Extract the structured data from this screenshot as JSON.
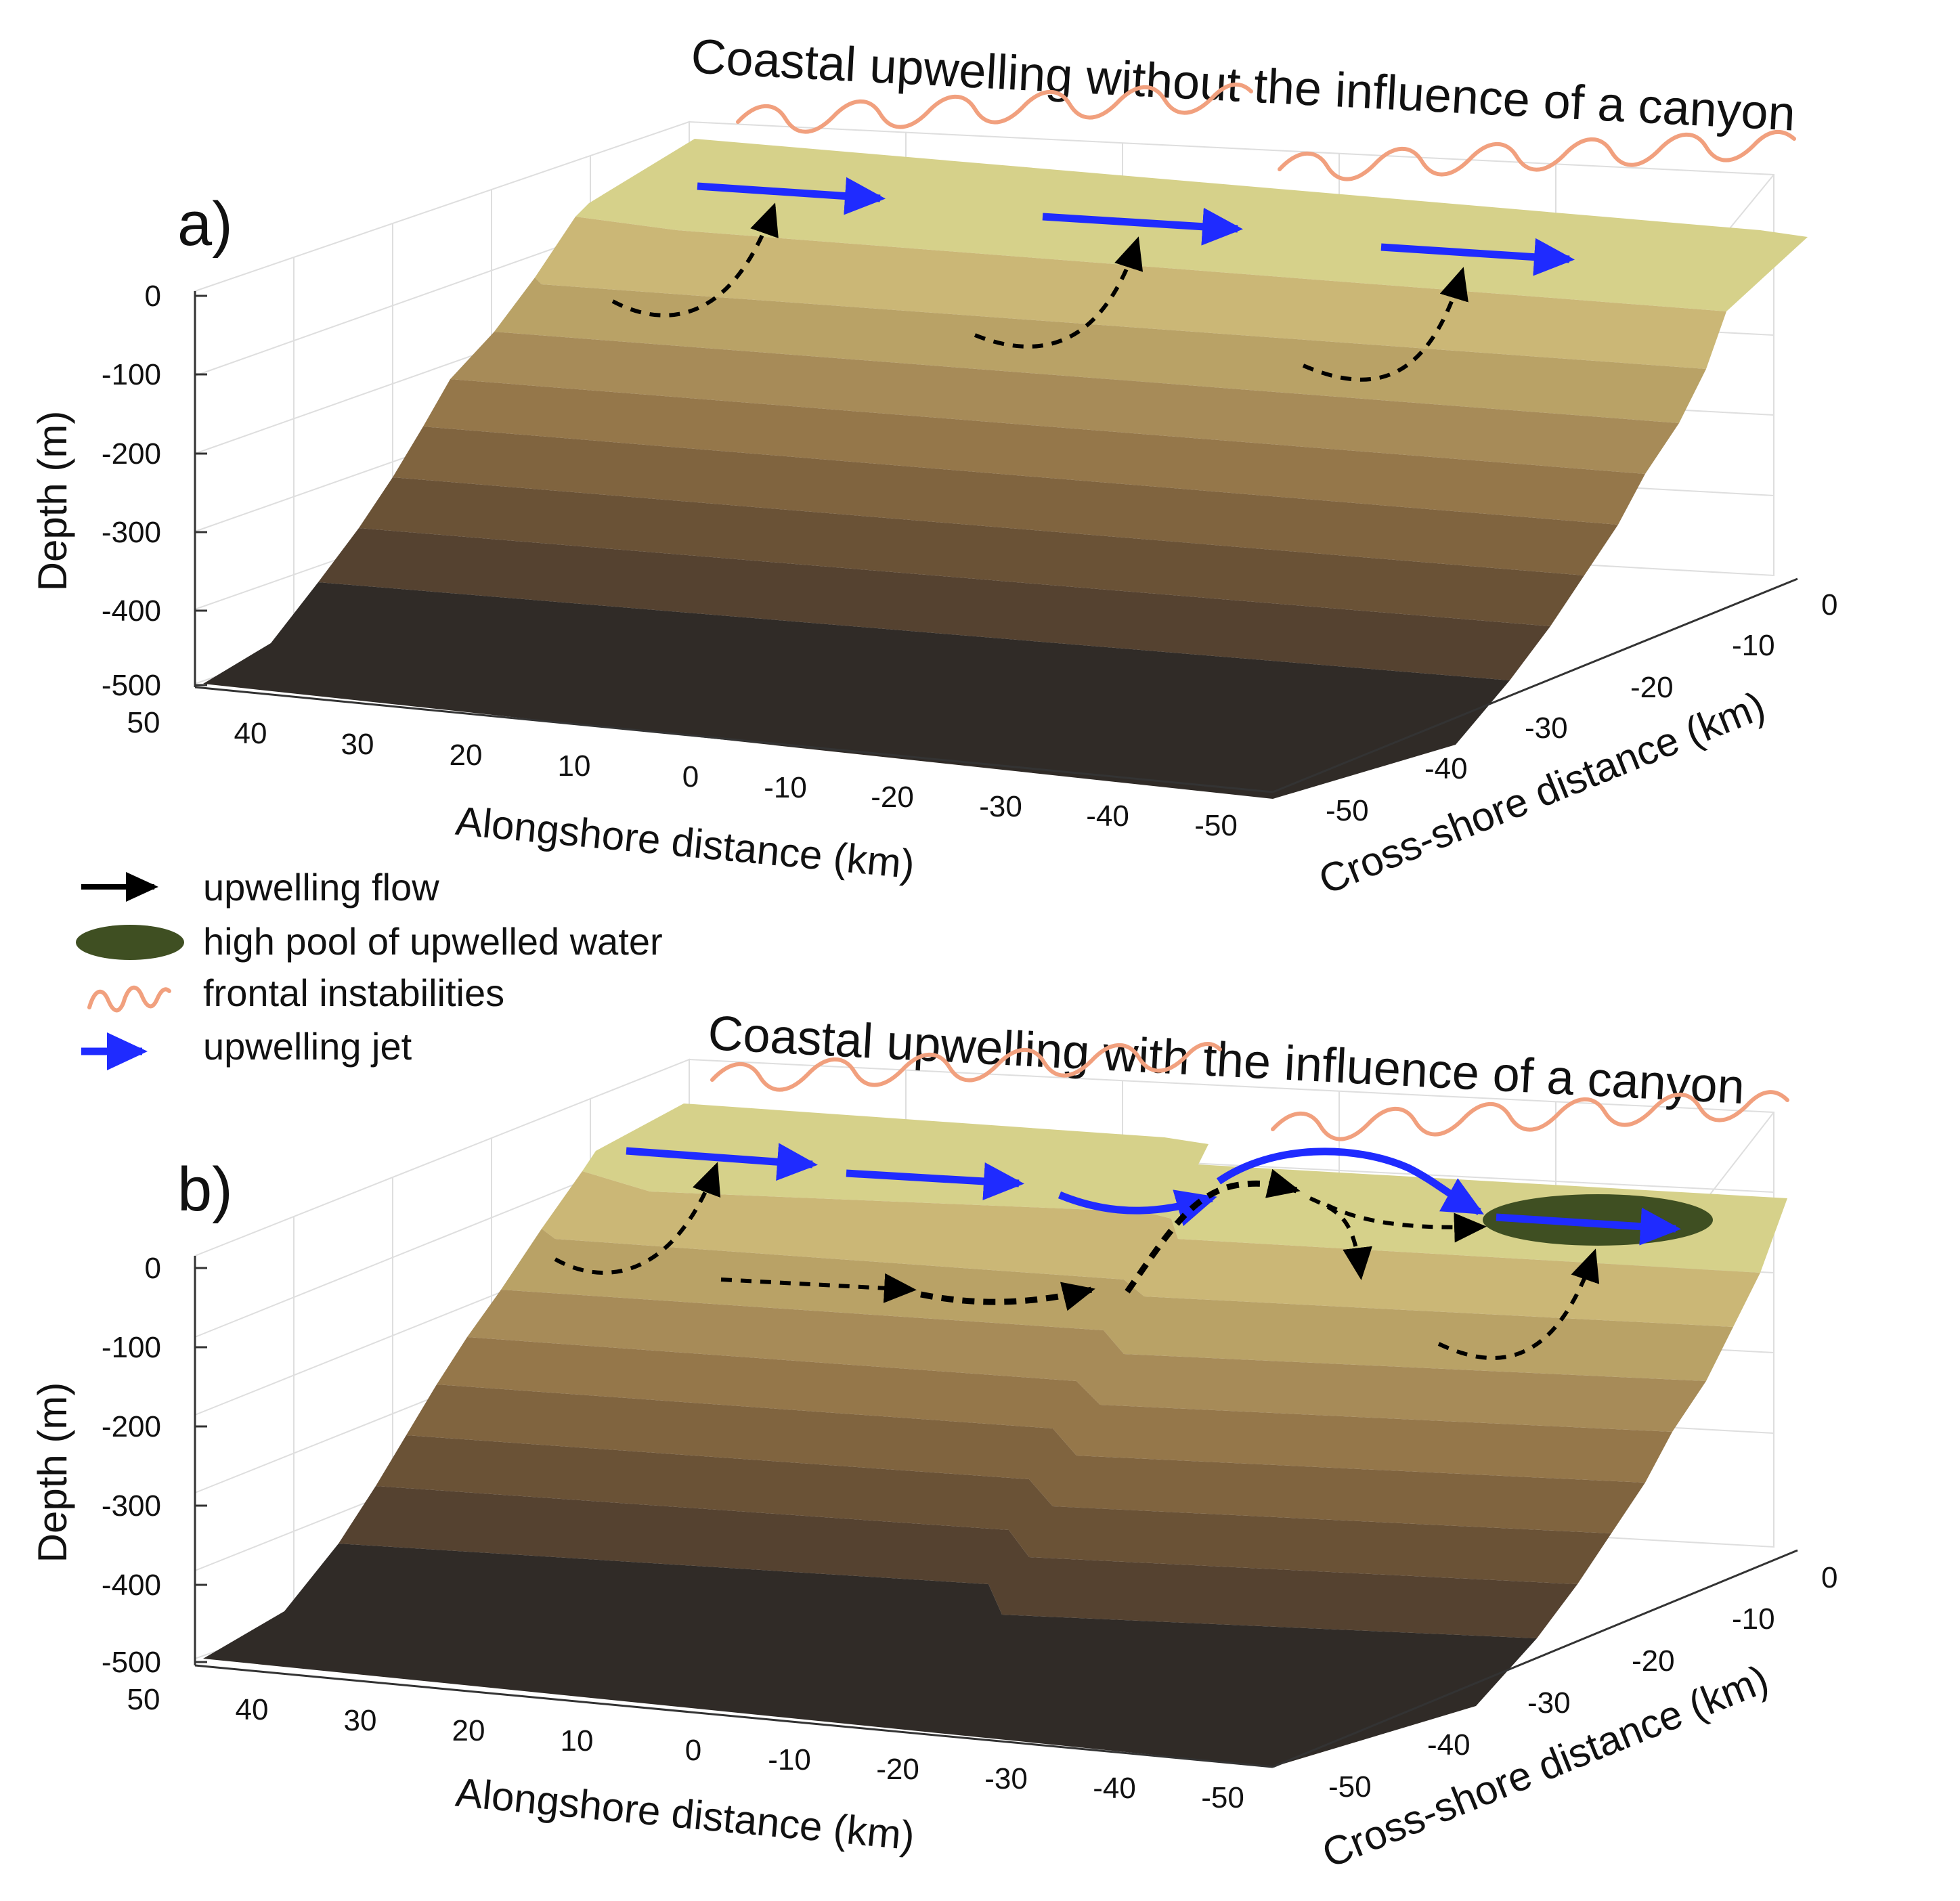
{
  "panels": [
    {
      "id": "a",
      "label": "a)",
      "title": "Coastal upwelling without the influence of a canyon",
      "z_axis": {
        "label": "Depth (m)",
        "ticks": [
          "0",
          "-100",
          "-200",
          "-300",
          "-400",
          "-500"
        ]
      },
      "x_axis": {
        "label": "Alongshore distance (km)",
        "ticks": [
          "50",
          "40",
          "30",
          "20",
          "10",
          "0",
          "-10",
          "-20",
          "-30",
          "-40",
          "-50"
        ]
      },
      "y_axis": {
        "label": "Cross-shore distance (km)",
        "ticks": [
          "0",
          "-10",
          "-20",
          "-30",
          "-40",
          "-50"
        ]
      }
    },
    {
      "id": "b",
      "label": "b)",
      "title": "Coastal upwelling with the influence of a canyon",
      "z_axis": {
        "label": "Depth (m)",
        "ticks": [
          "0",
          "-100",
          "-200",
          "-300",
          "-400",
          "-500"
        ]
      },
      "x_axis": {
        "label": "Alongshore distance (km)",
        "ticks": [
          "50",
          "40",
          "30",
          "20",
          "10",
          "0",
          "-10",
          "-20",
          "-30",
          "-40",
          "-50"
        ]
      },
      "y_axis": {
        "label": "Cross-shore distance (km)",
        "ticks": [
          "0",
          "-10",
          "-20",
          "-30",
          "-40",
          "-50"
        ]
      }
    }
  ],
  "legend": [
    {
      "label": "upwelling flow",
      "symbol": "black-arrow"
    },
    {
      "label": "high pool of upwelled water",
      "symbol": "dark-green-ellipse"
    },
    {
      "label": "frontal instabilities",
      "symbol": "orange-wave"
    },
    {
      "label": "upwelling jet",
      "symbol": "blue-arrow"
    }
  ],
  "colors": {
    "band_shallow_to_deep": [
      "#d6d18a",
      "#cbb776",
      "#b9a266",
      "#a78b58",
      "#95774a",
      "#80643f",
      "#6a5236",
      "#554230",
      "#302b27"
    ],
    "jet": "#1f2bff",
    "flow": "#000000",
    "instability": "#f1a07e",
    "pool": "#3f4f22",
    "grid": "#dedede"
  }
}
